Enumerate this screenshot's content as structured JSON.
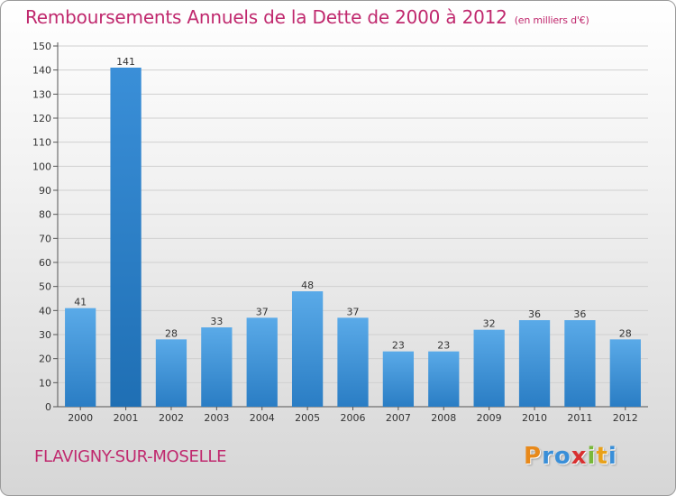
{
  "chart_data": {
    "type": "bar",
    "title": "Remboursements Annuels de la Dette de 2000 à 2012",
    "subtitle": "(en milliers d'€)",
    "categories": [
      "2000",
      "2001",
      "2002",
      "2003",
      "2004",
      "2005",
      "2006",
      "2007",
      "2008",
      "2009",
      "2010",
      "2011",
      "2012"
    ],
    "values": [
      41,
      141,
      28,
      33,
      37,
      48,
      37,
      23,
      23,
      32,
      36,
      36,
      28
    ],
    "ylim": [
      0,
      150
    ],
    "yticks": [
      0,
      10,
      20,
      30,
      40,
      50,
      60,
      70,
      80,
      90,
      100,
      110,
      120,
      130,
      140,
      150
    ],
    "grid": true,
    "bar_color": "#4a9be0",
    "bar_color_dark": "#2a7dc4"
  },
  "footer": {
    "commune": "FLAVIGNY-SUR-MOSELLE",
    "logo_letters": [
      "P",
      "r",
      "o",
      "x",
      "i",
      "t",
      "i"
    ],
    "logo_colors": [
      "#e8891a",
      "#3a8fd8",
      "#3a8fd8",
      "#d83030",
      "#78b83a",
      "#e8a11a",
      "#3a8fd8"
    ]
  }
}
